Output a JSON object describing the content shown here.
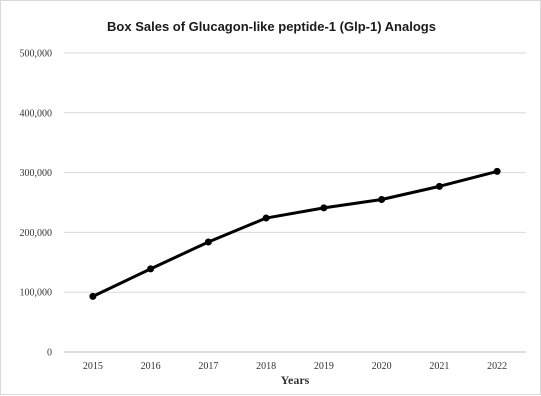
{
  "chart_data": {
    "type": "line",
    "title": "Box Sales of Glucagon-like peptide-1 (Glp-1) Analogs",
    "xlabel": "Years",
    "ylabel": "",
    "categories": [
      "2015",
      "2016",
      "2017",
      "2018",
      "2019",
      "2020",
      "2021",
      "2022"
    ],
    "series": [
      {
        "values": [
          93000,
          139000,
          184000,
          224000,
          241000,
          255000,
          277000,
          302000
        ]
      }
    ],
    "ylim": [
      0,
      500000
    ],
    "yticks": [
      0,
      100000,
      200000,
      300000,
      400000,
      500000
    ],
    "ytick_labels": [
      "0",
      "100,000",
      "200,000",
      "300,000",
      "400,000",
      "500,000"
    ],
    "grid": true,
    "legend": "none",
    "colors": {
      "line": "#000000",
      "grid": "#d9d9d9",
      "axis": "#bfbfbf"
    }
  }
}
